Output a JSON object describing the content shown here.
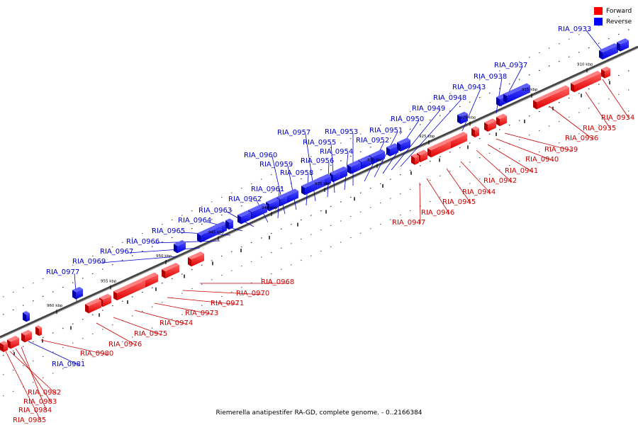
{
  "caption": "Riemerella anatipestifer RA-GD, complete genome. - 0..2166384",
  "legend": {
    "forward": {
      "label": "Forward",
      "color": "#ff0000"
    },
    "reverse": {
      "label": "Reverse",
      "color": "#0000ff"
    }
  },
  "ruler": [
    "910 kbp",
    "915 kbp",
    "920 kbp",
    "925 kbp",
    "930 kbp",
    "935 kbp",
    "940 kbp",
    "945 kbp",
    "950 kbp",
    "955 kbp",
    "960 kbp"
  ],
  "genes": {
    "reverse": [
      "RIA_0933",
      "RIA_0937",
      "RIA_0938",
      "RIA_0943",
      "RIA_0948",
      "RIA_0949",
      "RIA_0950",
      "RIA_0951",
      "RIA_0952",
      "RIA_0953",
      "RIA_0954",
      "RIA_0955",
      "RIA_0956",
      "RIA_0957",
      "RIA_0958",
      "RIA_0959",
      "RIA_0960",
      "RIA_0961",
      "RIA_0962",
      "RIA_0963",
      "RIA_0964",
      "RIA_0965",
      "RIA_0966",
      "RIA_0967",
      "RIA_0969",
      "RIA_0977",
      "RIA_0981"
    ],
    "forward": [
      "RIA_0934",
      "RIA_0935",
      "RIA_0936",
      "RIA_0939",
      "RIA_0940",
      "RIA_0941",
      "RIA_0942",
      "RIA_0944",
      "RIA_0945",
      "RIA_0946",
      "RIA_0947",
      "RIA_0968",
      "RIA_0970",
      "RIA_0971",
      "RIA_0973",
      "RIA_0974",
      "RIA_0975",
      "RIA_0976",
      "RIA_0980",
      "RIA_0982",
      "RIA_0983",
      "RIA_0984",
      "RIA_0985"
    ]
  }
}
